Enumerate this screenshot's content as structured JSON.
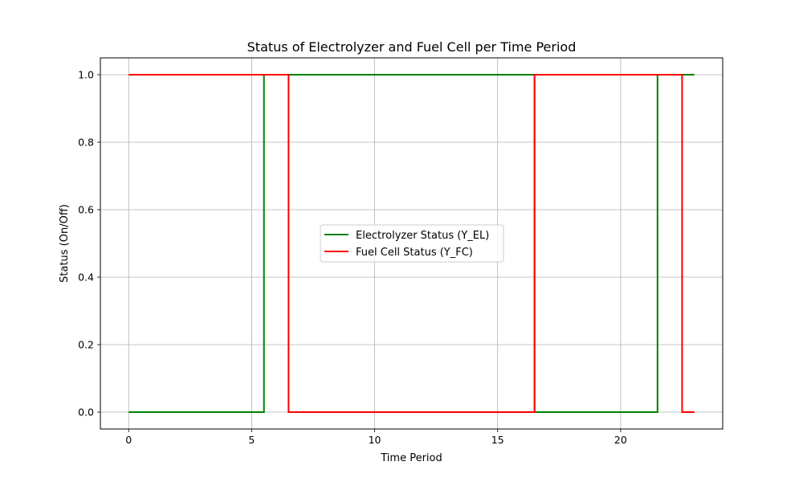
{
  "chart_data": {
    "type": "line",
    "step": "mid",
    "title": "Status of Electrolyzer and Fuel Cell per Time Period",
    "xlabel": "Time Period",
    "ylabel": "Status (On/Off)",
    "xlim": [
      -1.15,
      24.15
    ],
    "ylim": [
      -0.05,
      1.05
    ],
    "xticks": [
      0,
      5,
      10,
      15,
      20
    ],
    "yticks": [
      0.0,
      0.2,
      0.4,
      0.6,
      0.8,
      1.0
    ],
    "xtick_labels": [
      "0",
      "5",
      "10",
      "15",
      "20"
    ],
    "ytick_labels": [
      "0.0",
      "0.2",
      "0.4",
      "0.6",
      "0.8",
      "1.0"
    ],
    "grid": true,
    "legend": "center",
    "x": [
      0,
      1,
      2,
      3,
      4,
      5,
      6,
      7,
      8,
      9,
      10,
      11,
      12,
      13,
      14,
      15,
      16,
      17,
      18,
      19,
      20,
      21,
      22,
      23
    ],
    "series": [
      {
        "name": "Electrolyzer Status (Y_EL)",
        "color": "#008000",
        "values": [
          0,
          0,
          0,
          0,
          0,
          0,
          1,
          1,
          1,
          1,
          1,
          1,
          1,
          1,
          1,
          1,
          1,
          0,
          0,
          0,
          0,
          0,
          1,
          1
        ]
      },
      {
        "name": "Fuel Cell Status (Y_FC)",
        "color": "#ff0000",
        "values": [
          1,
          1,
          1,
          1,
          1,
          1,
          1,
          0,
          0,
          0,
          0,
          0,
          0,
          0,
          0,
          0,
          0,
          1,
          1,
          1,
          1,
          1,
          1,
          0
        ]
      }
    ]
  }
}
